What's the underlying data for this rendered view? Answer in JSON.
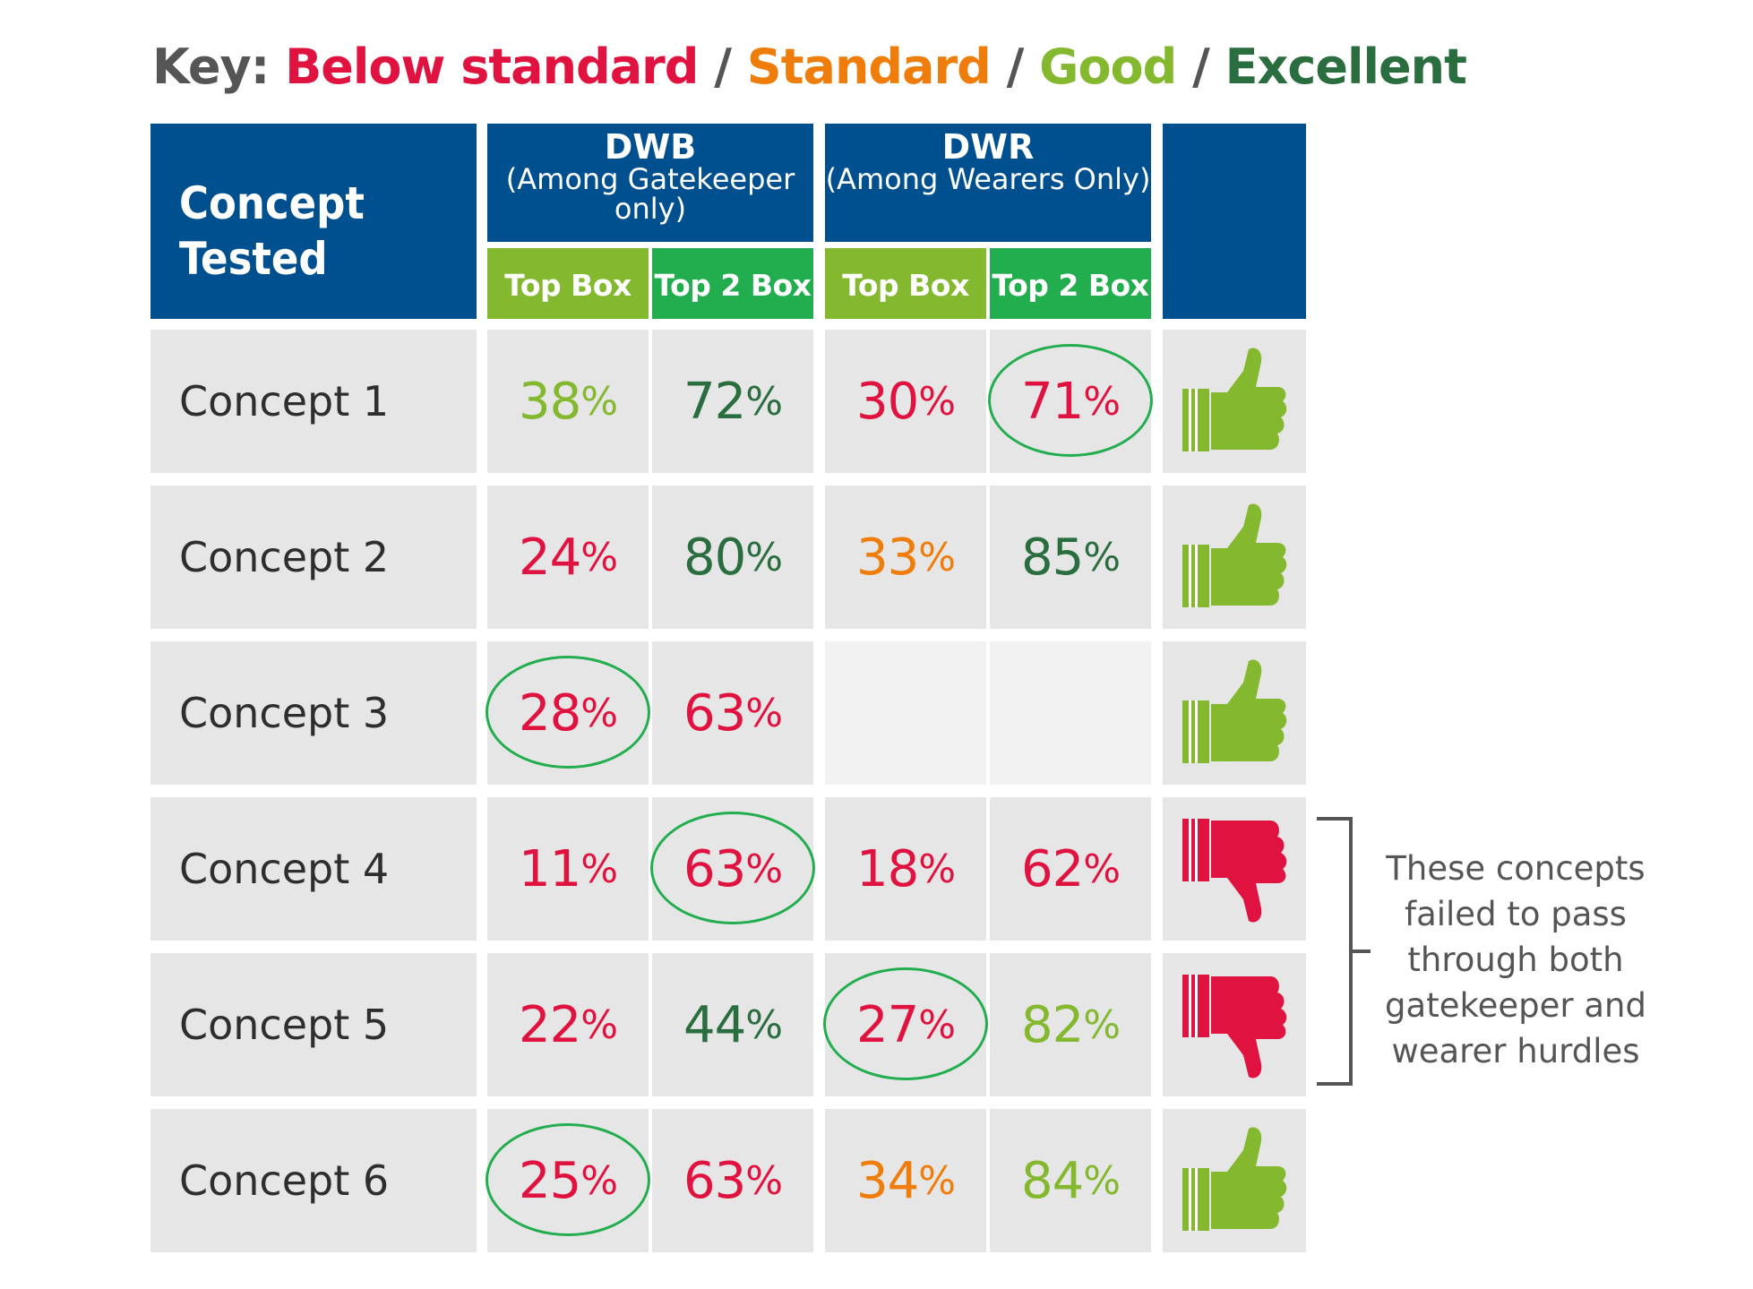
{
  "key": {
    "label": "Key:",
    "sep": "/",
    "levels": [
      {
        "name": "Below standard",
        "color": "#e0123f"
      },
      {
        "name": "Standard",
        "color": "#ef7d0b"
      },
      {
        "name": "Good",
        "color": "#84b82f"
      },
      {
        "name": "Excellent",
        "color": "#2a6e3f"
      }
    ]
  },
  "colors": {
    "header_blue": "#004f8f",
    "top_box_green": "#84b82f",
    "top2_box_green": "#22ad4f",
    "highlight_circle": "#22ad4f",
    "thumbs_up": "#84b82f",
    "thumbs_down": "#e0123f"
  },
  "chart_data": {
    "type": "table",
    "header": {
      "concept": "Concept Tested",
      "groups": [
        {
          "title": "DWB",
          "subtitle": "(Among Gatekeeper only)",
          "columns": [
            "Top Box",
            "Top 2 Box"
          ]
        },
        {
          "title": "DWR",
          "subtitle": "(Among Wearers Only)",
          "columns": [
            "Top Box",
            "Top 2 Box"
          ]
        }
      ]
    },
    "rows": [
      {
        "label": "Concept 1",
        "cells": [
          {
            "value": "38%",
            "rating": "Good",
            "circled": false
          },
          {
            "value": "72%",
            "rating": "Excellent",
            "circled": false
          },
          {
            "value": "30%",
            "rating": "Below standard",
            "circled": false
          },
          {
            "value": "71%",
            "rating": "Below standard",
            "circled": true
          }
        ],
        "verdict": "thumbs-up"
      },
      {
        "label": "Concept 2",
        "cells": [
          {
            "value": "24%",
            "rating": "Below standard",
            "circled": false
          },
          {
            "value": "80%",
            "rating": "Excellent",
            "circled": false
          },
          {
            "value": "33%",
            "rating": "Standard",
            "circled": false
          },
          {
            "value": "85%",
            "rating": "Excellent",
            "circled": false
          }
        ],
        "verdict": "thumbs-up"
      },
      {
        "label": "Concept 3",
        "cells": [
          {
            "value": "28%",
            "rating": "Below standard",
            "circled": true
          },
          {
            "value": "63%",
            "rating": "Below standard",
            "circled": false
          },
          {
            "value": null,
            "rating": null,
            "circled": false
          },
          {
            "value": null,
            "rating": null,
            "circled": false
          }
        ],
        "verdict": "thumbs-up"
      },
      {
        "label": "Concept 4",
        "cells": [
          {
            "value": "11%",
            "rating": "Below standard",
            "circled": false
          },
          {
            "value": "63%",
            "rating": "Below standard",
            "circled": true
          },
          {
            "value": "18%",
            "rating": "Below standard",
            "circled": false
          },
          {
            "value": "62%",
            "rating": "Below standard",
            "circled": false
          }
        ],
        "verdict": "thumbs-down"
      },
      {
        "label": "Concept 5",
        "cells": [
          {
            "value": "22%",
            "rating": "Below standard",
            "circled": false
          },
          {
            "value": "44%",
            "rating": "Excellent",
            "circled": false
          },
          {
            "value": "27%",
            "rating": "Below standard",
            "circled": true
          },
          {
            "value": "82%",
            "rating": "Good",
            "circled": false
          }
        ],
        "verdict": "thumbs-down"
      },
      {
        "label": "Concept 6",
        "cells": [
          {
            "value": "25%",
            "rating": "Below standard",
            "circled": true
          },
          {
            "value": "63%",
            "rating": "Below standard",
            "circled": false
          },
          {
            "value": "34%",
            "rating": "Standard",
            "circled": false
          },
          {
            "value": "84%",
            "rating": "Good",
            "circled": false
          }
        ],
        "verdict": "thumbs-up"
      }
    ],
    "annotation": {
      "text": "These concepts failed to pass through both gatekeeper and wearer hurdles",
      "rows": [
        "Concept 4",
        "Concept 5"
      ]
    }
  }
}
